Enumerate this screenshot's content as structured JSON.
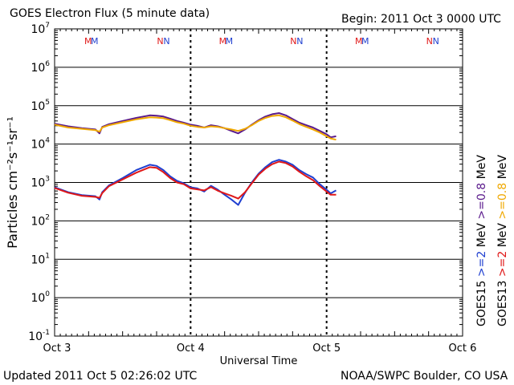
{
  "header": {
    "title": "GOES Electron Flux (5 minute data)",
    "begin": "Begin: 2011 Oct 3 0000 UTC"
  },
  "footer": {
    "updated": "Updated 2011 Oct  5 02:26:02 UTC",
    "credit": "NOAA/SWPC Boulder, CO USA"
  },
  "colors": {
    "g15_high": "#1f3fd0",
    "g13_high": "#e01818",
    "g15_low": "#5a1a8c",
    "g13_low": "#f0a800",
    "axis": "#000000"
  },
  "legend": {
    "goes15": {
      "label": "GOES15",
      "high": ">=2",
      "low": ">=0.8",
      "unit": "MeV"
    },
    "goes13": {
      "label": "GOES13",
      "high": ">=2",
      "low": ">=0.8",
      "unit": "MeV"
    }
  },
  "chart_data": {
    "type": "line",
    "title": "GOES Electron Flux (5 minute data)",
    "xlabel": "Universal Time",
    "ylabel": "Particles cm⁻²s⁻¹sr⁻¹",
    "yscale": "log",
    "ylim_exp": [
      -1,
      7
    ],
    "xlim_days": [
      0,
      3
    ],
    "x_ticks": [
      {
        "day": 0,
        "label": "Oct 3"
      },
      {
        "day": 1,
        "label": "Oct 4"
      },
      {
        "day": 2,
        "label": "Oct 5"
      },
      {
        "day": 3,
        "label": "Oct 6"
      }
    ],
    "y_tick_exponents": [
      -1,
      0,
      1,
      2,
      3,
      4,
      5,
      6,
      7
    ],
    "threshold": {
      "value": 1000,
      "style": "dashed"
    },
    "orbit_markers": [
      {
        "day": 0.27,
        "label": "M"
      },
      {
        "day": 0.8,
        "label": "N"
      },
      {
        "day": 1.26,
        "label": "M"
      },
      {
        "day": 1.78,
        "label": "N"
      },
      {
        "day": 2.26,
        "label": "M"
      },
      {
        "day": 2.78,
        "label": "N"
      }
    ],
    "series": [
      {
        "name": "GOES15 >=2 MeV",
        "color_key": "g15_high",
        "x": [
          0.0,
          0.1,
          0.2,
          0.3,
          0.33,
          0.35,
          0.4,
          0.5,
          0.6,
          0.7,
          0.75,
          0.8,
          0.85,
          0.9,
          0.95,
          1.0,
          1.05,
          1.1,
          1.15,
          1.2,
          1.25,
          1.3,
          1.35,
          1.4,
          1.45,
          1.5,
          1.55,
          1.6,
          1.65,
          1.7,
          1.75,
          1.8,
          1.85,
          1.9,
          1.95,
          2.0,
          2.03,
          2.07
        ],
        "y": [
          750,
          560,
          470,
          440,
          360,
          560,
          840,
          1300,
          2100,
          2900,
          2700,
          2100,
          1450,
          1100,
          950,
          750,
          700,
          580,
          820,
          650,
          480,
          360,
          260,
          540,
          1000,
          1700,
          2500,
          3400,
          3900,
          3500,
          2900,
          2100,
          1650,
          1350,
          900,
          650,
          520,
          620
        ]
      },
      {
        "name": "GOES13 >=2 MeV",
        "color_key": "g13_high",
        "x": [
          0.0,
          0.1,
          0.2,
          0.3,
          0.33,
          0.35,
          0.4,
          0.5,
          0.6,
          0.7,
          0.75,
          0.8,
          0.85,
          0.9,
          0.95,
          1.0,
          1.05,
          1.1,
          1.15,
          1.2,
          1.25,
          1.3,
          1.35,
          1.4,
          1.45,
          1.5,
          1.55,
          1.6,
          1.65,
          1.7,
          1.75,
          1.8,
          1.85,
          1.9,
          1.95,
          2.0,
          2.03,
          2.07
        ],
        "y": [
          720,
          540,
          450,
          420,
          400,
          530,
          800,
          1200,
          1800,
          2500,
          2400,
          1850,
          1300,
          1000,
          900,
          700,
          660,
          620,
          760,
          610,
          520,
          450,
          380,
          560,
          950,
          1600,
          2300,
          3000,
          3500,
          3200,
          2600,
          1900,
          1450,
          1150,
          800,
          580,
          480,
          480
        ]
      },
      {
        "name": "GOES15 >=0.8 MeV",
        "color_key": "g15_low",
        "x": [
          0.0,
          0.1,
          0.2,
          0.3,
          0.33,
          0.35,
          0.4,
          0.5,
          0.6,
          0.7,
          0.75,
          0.8,
          0.85,
          0.9,
          0.95,
          1.0,
          1.05,
          1.1,
          1.15,
          1.2,
          1.25,
          1.3,
          1.35,
          1.4,
          1.45,
          1.5,
          1.55,
          1.6,
          1.65,
          1.7,
          1.75,
          1.8,
          1.85,
          1.9,
          1.95,
          2.0,
          2.03,
          2.07
        ],
        "y": [
          34000,
          29000,
          26000,
          24000,
          19000,
          28000,
          33000,
          40000,
          48000,
          56000,
          55000,
          52000,
          46000,
          40000,
          36000,
          32000,
          30000,
          27000,
          31000,
          29000,
          26000,
          22000,
          19000,
          24000,
          32000,
          42000,
          52000,
          60000,
          64000,
          56000,
          45000,
          36000,
          31000,
          27000,
          22000,
          18000,
          15000,
          16000
        ]
      },
      {
        "name": "GOES13 >=0.8 MeV",
        "color_key": "g13_low",
        "x": [
          0.0,
          0.1,
          0.2,
          0.3,
          0.33,
          0.35,
          0.4,
          0.5,
          0.6,
          0.7,
          0.75,
          0.8,
          0.85,
          0.9,
          0.95,
          1.0,
          1.05,
          1.1,
          1.15,
          1.2,
          1.25,
          1.3,
          1.35,
          1.4,
          1.45,
          1.5,
          1.55,
          1.6,
          1.65,
          1.7,
          1.75,
          1.8,
          1.85,
          1.9,
          1.95,
          2.0,
          2.03,
          2.07
        ],
        "y": [
          32000,
          27000,
          25000,
          23000,
          21000,
          27000,
          31000,
          37000,
          44000,
          50000,
          49000,
          47000,
          42000,
          37000,
          34000,
          30000,
          28000,
          27000,
          29000,
          28000,
          26000,
          24000,
          22000,
          25000,
          31000,
          40000,
          48000,
          54000,
          56000,
          50000,
          41000,
          33000,
          28000,
          24000,
          20000,
          16000,
          14000,
          13000
        ]
      }
    ]
  }
}
